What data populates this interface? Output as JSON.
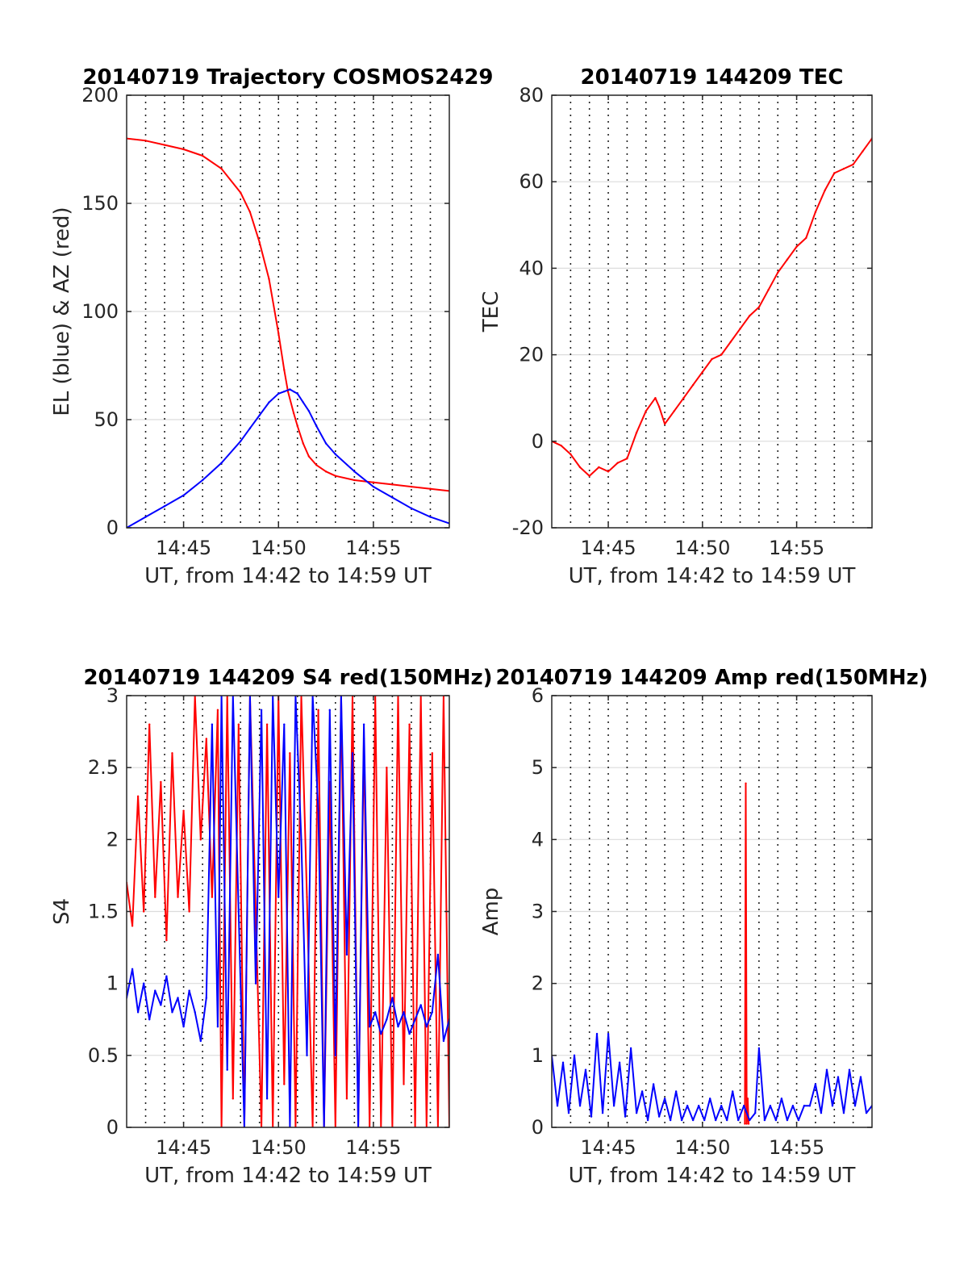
{
  "chart_data": [
    {
      "type": "line",
      "title": "20140719 Trajectory COSMOS2429",
      "xlabel": "UT, from 14:42 to 14:59 UT",
      "ylabel": "EL (blue) & AZ (red)",
      "xlim": [
        42.0,
        59.0
      ],
      "ylim": [
        0,
        200
      ],
      "xticks": [
        45,
        50,
        55
      ],
      "xtick_labels": [
        "14:45",
        "14:50",
        "14:55"
      ],
      "yticks": [
        0,
        50,
        100,
        150,
        200
      ],
      "ytick_labels": [
        "0",
        "50",
        "100",
        "150",
        "200"
      ],
      "grid": true,
      "series": [
        {
          "color": "#ff0000",
          "x": [
            42.0,
            43,
            44,
            45,
            46,
            47,
            48,
            48.5,
            49,
            49.5,
            50,
            50.3,
            50.5,
            50.8,
            51,
            51.3,
            51.6,
            52,
            52.5,
            53,
            54,
            55,
            56,
            57,
            58,
            59
          ],
          "values": [
            180,
            179,
            177,
            175,
            172,
            166,
            155,
            146,
            132,
            115,
            90,
            73,
            63,
            53,
            47,
            39,
            33,
            29,
            26,
            24,
            22,
            21,
            20,
            19,
            18,
            17
          ]
        },
        {
          "color": "#0000ff",
          "x": [
            42.0,
            43,
            44,
            45,
            46,
            47,
            48,
            48.5,
            49,
            49.5,
            50,
            50.3,
            50.6,
            50.8,
            51,
            51.3,
            51.6,
            52,
            52.5,
            53,
            54,
            55,
            56,
            57,
            58,
            59
          ],
          "values": [
            0,
            5,
            10,
            15,
            22,
            30,
            40,
            46,
            52,
            58,
            62,
            63,
            64,
            63,
            62,
            58,
            54,
            47,
            39,
            34,
            26,
            19,
            14,
            9,
            5,
            2
          ]
        }
      ]
    },
    {
      "type": "line",
      "title": "20140719 144209 TEC",
      "xlabel": "UT, from 14:42 to 14:59 UT",
      "ylabel": "TEC",
      "xlim": [
        42.0,
        59.0
      ],
      "ylim": [
        -20,
        80
      ],
      "xticks": [
        45,
        50,
        55
      ],
      "xtick_labels": [
        "14:45",
        "14:50",
        "14:55"
      ],
      "yticks": [
        -20,
        0,
        20,
        40,
        60,
        80
      ],
      "ytick_labels": [
        "-20",
        "0",
        "20",
        "40",
        "60",
        "80"
      ],
      "grid": true,
      "series": [
        {
          "color": "#ff0000",
          "x": [
            42.0,
            42.5,
            43,
            43.5,
            44,
            44.5,
            45,
            45.5,
            46,
            46.5,
            47,
            47.5,
            47.7,
            48,
            48.5,
            49,
            49.5,
            50,
            50.5,
            51,
            51.5,
            52,
            52.5,
            53,
            53.5,
            54,
            54.5,
            55,
            55.5,
            56,
            56.5,
            57,
            57.5,
            58,
            58.5,
            59
          ],
          "values": [
            0,
            -1,
            -3,
            -6,
            -8,
            -6,
            -7,
            -5,
            -4,
            2,
            7,
            10,
            8,
            4,
            7,
            10,
            13,
            16,
            19,
            20,
            23,
            26,
            29,
            31,
            35,
            39,
            42,
            45,
            47,
            53,
            58,
            62,
            63,
            64,
            67,
            70
          ]
        }
      ]
    },
    {
      "type": "line",
      "title": "20140719 144209 S4 red(150MHz)",
      "xlabel": "UT, from 14:42 to 14:59 UT",
      "ylabel": "S4",
      "xlim": [
        42.0,
        59.0
      ],
      "ylim": [
        0,
        3
      ],
      "xticks": [
        45,
        50,
        55
      ],
      "xtick_labels": [
        "14:45",
        "14:50",
        "14:55"
      ],
      "yticks": [
        0,
        0.5,
        1,
        1.5,
        2,
        2.5,
        3
      ],
      "ytick_labels": [
        "0",
        "0.5",
        "1",
        "1.5",
        "2",
        "2.5",
        "3"
      ],
      "grid": true,
      "series": [
        {
          "color": "#ff0000",
          "x": [
            42.0,
            42.3,
            42.6,
            42.9,
            43.2,
            43.5,
            43.8,
            44.1,
            44.4,
            44.7,
            45.0,
            45.3,
            45.6,
            45.9,
            46.2,
            46.5,
            46.8,
            47.0,
            47.3,
            47.6,
            47.9,
            48.2,
            48.5,
            48.8,
            49.1,
            49.4,
            49.7,
            50.0,
            50.3,
            50.6,
            50.9,
            51.2,
            51.5,
            51.8,
            52.1,
            52.4,
            52.7,
            53.0,
            53.3,
            53.6,
            53.9,
            54.2,
            54.5,
            54.8,
            55.1,
            55.4,
            55.7,
            56.0,
            56.3,
            56.6,
            56.9,
            57.2,
            57.5,
            57.8,
            58.1,
            58.4,
            58.7,
            59.0
          ],
          "values": [
            1.7,
            1.4,
            2.3,
            1.5,
            2.8,
            1.6,
            2.4,
            1.3,
            2.6,
            1.6,
            2.2,
            1.5,
            3.0,
            2.0,
            2.7,
            1.6,
            2.9,
            0.0,
            3.0,
            0.2,
            2.8,
            0.0,
            3.0,
            1.5,
            0.0,
            2.8,
            0.0,
            3.0,
            0.3,
            2.6,
            0.0,
            3.0,
            1.6,
            0.0,
            2.9,
            0.0,
            2.4,
            0.0,
            3.0,
            0.2,
            3.0,
            0.0,
            2.7,
            0.0,
            3.0,
            0.0,
            2.5,
            0.0,
            3.0,
            0.3,
            2.8,
            0.0,
            3.0,
            0.0,
            2.6,
            0.0,
            3.0,
            0.0
          ]
        },
        {
          "color": "#0000ff",
          "x": [
            42.0,
            42.3,
            42.6,
            42.9,
            43.2,
            43.5,
            43.8,
            44.1,
            44.4,
            44.7,
            45.0,
            45.3,
            45.6,
            45.9,
            46.2,
            46.5,
            46.8,
            47.0,
            47.3,
            47.6,
            47.9,
            48.2,
            48.5,
            48.8,
            49.1,
            49.4,
            49.7,
            50.0,
            50.3,
            50.6,
            50.9,
            51.2,
            51.5,
            51.8,
            52.1,
            52.4,
            52.7,
            53.0,
            53.3,
            53.6,
            53.9,
            54.2,
            54.5,
            54.8,
            55.1,
            55.4,
            55.7,
            56.0,
            56.3,
            56.6,
            56.9,
            57.2,
            57.5,
            57.8,
            58.1,
            58.4,
            58.7,
            59.0
          ],
          "values": [
            0.9,
            1.1,
            0.8,
            1.0,
            0.75,
            0.95,
            0.85,
            1.05,
            0.8,
            0.9,
            0.7,
            0.95,
            0.8,
            0.6,
            0.9,
            2.8,
            0.7,
            3.0,
            0.4,
            3.0,
            1.5,
            0.0,
            3.0,
            1.0,
            2.9,
            0.2,
            3.0,
            1.6,
            2.8,
            0.0,
            3.0,
            2.0,
            0.5,
            3.0,
            2.2,
            0.0,
            2.9,
            0.5,
            3.0,
            1.2,
            2.6,
            0.0,
            2.8,
            0.7,
            0.8,
            0.65,
            0.75,
            0.9,
            0.7,
            0.8,
            0.65,
            0.75,
            0.85,
            0.7,
            0.8,
            1.2,
            0.6,
            0.75
          ]
        }
      ]
    },
    {
      "type": "line",
      "title": "20140719 144209 Amp red(150MHz)",
      "xlabel": "UT, from 14:42 to 14:59 UT",
      "ylabel": "Amp",
      "xlim": [
        42.0,
        59.0
      ],
      "ylim": [
        0,
        6
      ],
      "xticks": [
        45,
        50,
        55
      ],
      "xtick_labels": [
        "14:45",
        "14:50",
        "14:55"
      ],
      "yticks": [
        0,
        1,
        2,
        3,
        4,
        5,
        6
      ],
      "ytick_labels": [
        "0",
        "1",
        "2",
        "3",
        "4",
        "5",
        "6"
      ],
      "grid": true,
      "series": [
        {
          "color": "#ff0000",
          "x": [
            52.25,
            52.3,
            52.35,
            52.4,
            52.45
          ],
          "values": [
            0.05,
            4.78,
            0.05,
            0.4,
            0.05
          ]
        },
        {
          "color": "#0000ff",
          "x": [
            42.0,
            42.3,
            42.6,
            42.9,
            43.2,
            43.5,
            43.8,
            44.1,
            44.4,
            44.7,
            45.0,
            45.3,
            45.6,
            45.9,
            46.2,
            46.5,
            46.8,
            47.1,
            47.4,
            47.7,
            48.0,
            48.3,
            48.6,
            48.9,
            49.2,
            49.5,
            49.8,
            50.1,
            50.4,
            50.7,
            51.0,
            51.3,
            51.6,
            51.9,
            52.2,
            52.5,
            52.8,
            53.0,
            53.3,
            53.6,
            53.9,
            54.2,
            54.5,
            54.8,
            55.1,
            55.4,
            55.7,
            56.0,
            56.3,
            56.6,
            56.9,
            57.2,
            57.5,
            57.8,
            58.1,
            58.4,
            58.7,
            59.0
          ],
          "values": [
            1.0,
            0.3,
            0.9,
            0.2,
            1.0,
            0.3,
            0.8,
            0.15,
            1.3,
            0.2,
            1.3,
            0.3,
            0.9,
            0.15,
            1.1,
            0.2,
            0.5,
            0.1,
            0.6,
            0.15,
            0.4,
            0.1,
            0.5,
            0.1,
            0.3,
            0.1,
            0.3,
            0.1,
            0.4,
            0.1,
            0.3,
            0.1,
            0.5,
            0.1,
            0.3,
            0.1,
            0.2,
            1.1,
            0.1,
            0.3,
            0.1,
            0.4,
            0.1,
            0.3,
            0.1,
            0.3,
            0.3,
            0.6,
            0.2,
            0.8,
            0.3,
            0.7,
            0.2,
            0.8,
            0.3,
            0.7,
            0.2,
            0.3
          ]
        }
      ]
    }
  ]
}
